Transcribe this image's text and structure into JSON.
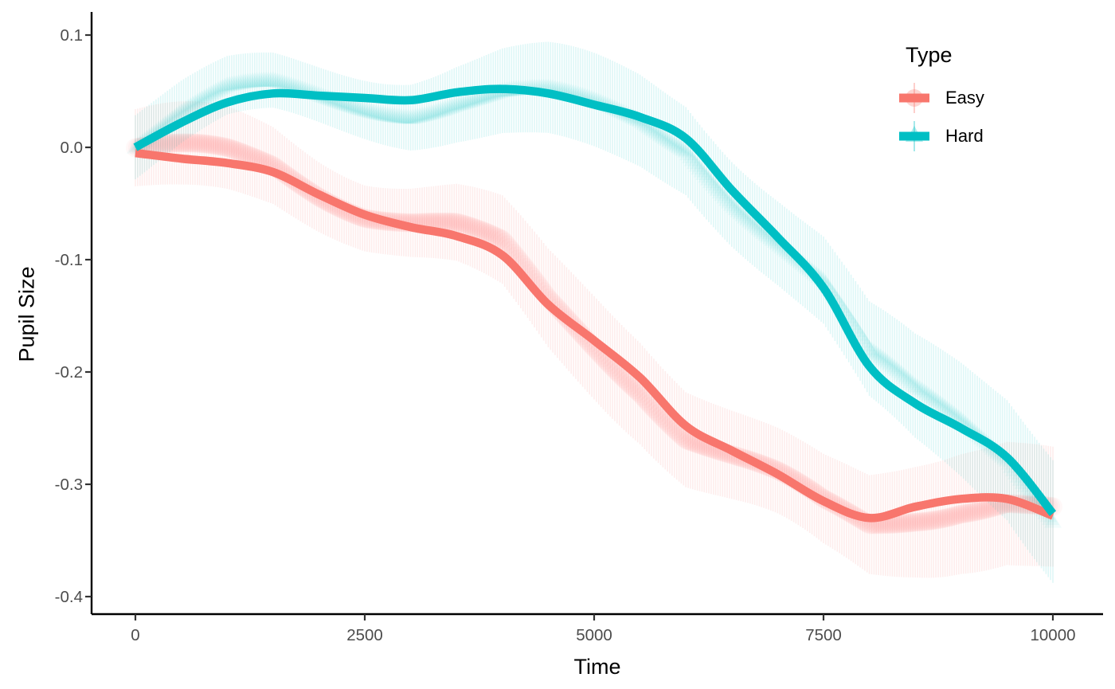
{
  "chart_data": {
    "type": "line",
    "title": "",
    "xlabel": "Time",
    "ylabel": "Pupil Size",
    "xlim": [
      -480,
      10560
    ],
    "ylim": [
      -0.416,
      0.121
    ],
    "grid": false,
    "xticks": {
      "values": [
        0,
        2500,
        5000,
        7500,
        10000
      ],
      "labels": [
        "0",
        "2500",
        "5000",
        "7500",
        "10000"
      ]
    },
    "yticks": {
      "values": [
        0.1,
        0.0,
        -0.1,
        -0.2,
        -0.3,
        -0.4
      ],
      "labels": [
        "0.1",
        "0.0",
        "-0.1",
        "-0.2",
        "-0.3",
        "-0.4"
      ]
    },
    "legend": {
      "title": "Type",
      "position": "right-top",
      "entries": [
        {
          "label": "Easy",
          "color": "#F8766D",
          "marker": "circle"
        },
        {
          "label": "Hard",
          "color": "#00BFC4",
          "marker": "triangle-up"
        }
      ]
    },
    "series": [
      {
        "name": "Easy",
        "color": "#F8766D",
        "marker": "circle",
        "smooth": [
          [
            0,
            -0.005
          ],
          [
            500,
            -0.01
          ],
          [
            1000,
            -0.014
          ],
          [
            1500,
            -0.022
          ],
          [
            2000,
            -0.042
          ],
          [
            2500,
            -0.06
          ],
          [
            3000,
            -0.071
          ],
          [
            3500,
            -0.079
          ],
          [
            4000,
            -0.096
          ],
          [
            4500,
            -0.14
          ],
          [
            5000,
            -0.172
          ],
          [
            5500,
            -0.205
          ],
          [
            6000,
            -0.248
          ],
          [
            6500,
            -0.27
          ],
          [
            7000,
            -0.291
          ],
          [
            7500,
            -0.315
          ],
          [
            8000,
            -0.33
          ],
          [
            8500,
            -0.32
          ],
          [
            9000,
            -0.313
          ],
          [
            9500,
            -0.313
          ],
          [
            10000,
            -0.328
          ]
        ],
        "band": {
          "step": 25,
          "half_base": 0.03,
          "half_slope": 2e-06,
          "half_amp": 0.006,
          "half_period": 700,
          "half_phase": 0.8,
          "wiggle": [
            {
              "amp": 0.011,
              "period": 520,
              "phase": 0.3
            },
            {
              "amp": 0.007,
              "period": 1600,
              "phase": 0.2
            }
          ]
        }
      },
      {
        "name": "Hard",
        "color": "#00BFC4",
        "marker": "triangle-up",
        "smooth": [
          [
            0,
            0.0
          ],
          [
            500,
            0.022
          ],
          [
            1000,
            0.04
          ],
          [
            1500,
            0.048
          ],
          [
            2000,
            0.046
          ],
          [
            2500,
            0.044
          ],
          [
            3000,
            0.042
          ],
          [
            3500,
            0.049
          ],
          [
            4000,
            0.052
          ],
          [
            4500,
            0.048
          ],
          [
            5000,
            0.038
          ],
          [
            5500,
            0.027
          ],
          [
            6000,
            0.008
          ],
          [
            6500,
            -0.038
          ],
          [
            7000,
            -0.08
          ],
          [
            7500,
            -0.125
          ],
          [
            8000,
            -0.195
          ],
          [
            8500,
            -0.228
          ],
          [
            9000,
            -0.25
          ],
          [
            9500,
            -0.276
          ],
          [
            10000,
            -0.326
          ]
        ],
        "band": {
          "step": 25,
          "half_base": 0.024,
          "half_slope": 2.6e-06,
          "half_amp": 0.005,
          "half_period": 800,
          "half_phase": 2.0,
          "wiggle": [
            {
              "amp": 0.012,
              "period": 560,
              "phase": -0.5
            },
            {
              "amp": 0.006,
              "period": 1500,
              "phase": 1.8
            }
          ]
        }
      }
    ],
    "style": {
      "line_width": 10.5,
      "band_bar_alpha": 0.13,
      "band_marker_alpha": 0.05,
      "axis_color": "#000000",
      "tick_color": "#333333",
      "tick_label_color": "#4D4D4D",
      "background": "#FFFFFF"
    }
  }
}
